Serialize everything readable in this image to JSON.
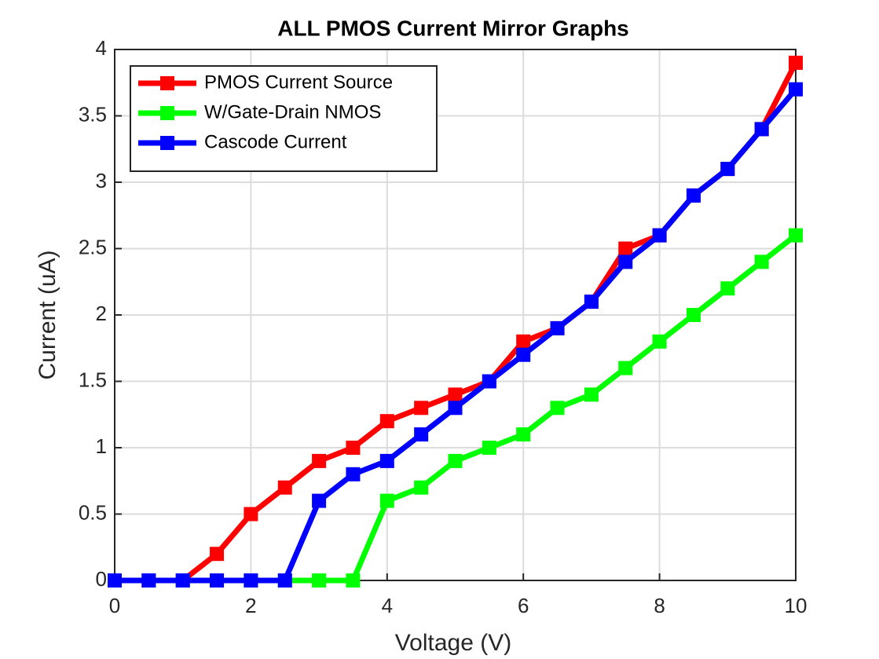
{
  "chart_data": {
    "type": "line",
    "title": "ALL PMOS Current Mirror Graphs",
    "x_label": "Voltage (V)",
    "y_label": "Current (uA)",
    "x": [
      0,
      0.5,
      1,
      1.5,
      2,
      2.5,
      3,
      3.5,
      4,
      4.5,
      5,
      5.5,
      6,
      6.5,
      7,
      7.5,
      8,
      8.5,
      9,
      9.5,
      10
    ],
    "series": [
      {
        "name": "PMOS Current Source",
        "color": "#ff0000",
        "values": [
          0,
          0,
          0,
          0.2,
          0.5,
          0.7,
          0.9,
          1.0,
          1.2,
          1.3,
          1.4,
          1.5,
          1.8,
          1.9,
          2.1,
          2.5,
          2.6,
          2.9,
          3.1,
          3.4,
          3.9
        ]
      },
      {
        "name": "W/Gate-Drain NMOS",
        "color": "#00ff00",
        "values": [
          0,
          0,
          0,
          0,
          0,
          0,
          0,
          0,
          0.6,
          0.7,
          0.9,
          1.0,
          1.1,
          1.3,
          1.4,
          1.6,
          1.8,
          2.0,
          2.2,
          2.4,
          2.6
        ]
      },
      {
        "name": "Cascode Current",
        "color": "#0000ff",
        "values": [
          0,
          0,
          0,
          0,
          0,
          0,
          0.6,
          0.8,
          0.9,
          1.1,
          1.3,
          1.5,
          1.7,
          1.9,
          2.1,
          2.4,
          2.6,
          2.9,
          3.1,
          3.4,
          3.7
        ]
      }
    ],
    "xlim": [
      0,
      10
    ],
    "xticks": [
      0,
      2,
      4,
      6,
      8,
      10
    ],
    "ylim": [
      0,
      4
    ],
    "yticks": [
      0,
      0.5,
      1,
      1.5,
      2,
      2.5,
      3,
      3.5,
      4
    ],
    "grid": true,
    "legend": "upper-left"
  }
}
